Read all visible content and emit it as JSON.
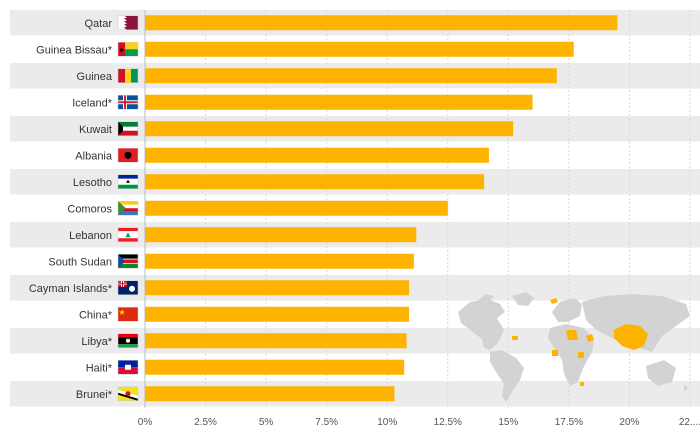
{
  "colors": {
    "bar": "#FDB300",
    "row_band": "#EBEBEB",
    "grid": "#D9D9D9",
    "map_land": "#D3D3D3",
    "map_highlight": "#FDB300"
  },
  "chart_data": {
    "type": "bar",
    "orientation": "horizontal",
    "title": "",
    "xlabel": "",
    "ylabel": "",
    "categories": [
      "Qatar",
      "Guinea Bissau*",
      "Guinea",
      "Iceland*",
      "Kuwait",
      "Albania",
      "Lesotho",
      "Comoros",
      "Lebanon",
      "South Sudan",
      "Cayman Islands*",
      "China*",
      "Libya*",
      "Haiti*",
      "Brunei*"
    ],
    "values": [
      19.5,
      17.7,
      17.0,
      16.0,
      15.2,
      14.2,
      14.0,
      12.5,
      11.2,
      11.1,
      10.9,
      10.9,
      10.8,
      10.7,
      10.3
    ],
    "flags": [
      "qatar-flag-icon",
      "guinea-bissau-flag-icon",
      "guinea-flag-icon",
      "iceland-flag-icon",
      "kuwait-flag-icon",
      "albania-flag-icon",
      "lesotho-flag-icon",
      "comoros-flag-icon",
      "lebanon-flag-icon",
      "south-sudan-flag-icon",
      "cayman-islands-flag-icon",
      "china-flag-icon",
      "libya-flag-icon",
      "haiti-flag-icon",
      "brunei-flag-icon"
    ],
    "xticks": [
      0,
      2.5,
      5,
      7.5,
      10,
      12.5,
      15,
      17.5,
      20,
      22.5
    ],
    "xtick_labels": [
      "0%",
      "2.5%",
      "5%",
      "7.5%",
      "10%",
      "12.5%",
      "15%",
      "17.5%",
      "20%",
      "22...."
    ],
    "xlim": [
      0,
      22.5
    ],
    "grid": true,
    "legend": "none",
    "inset": "world-map"
  }
}
